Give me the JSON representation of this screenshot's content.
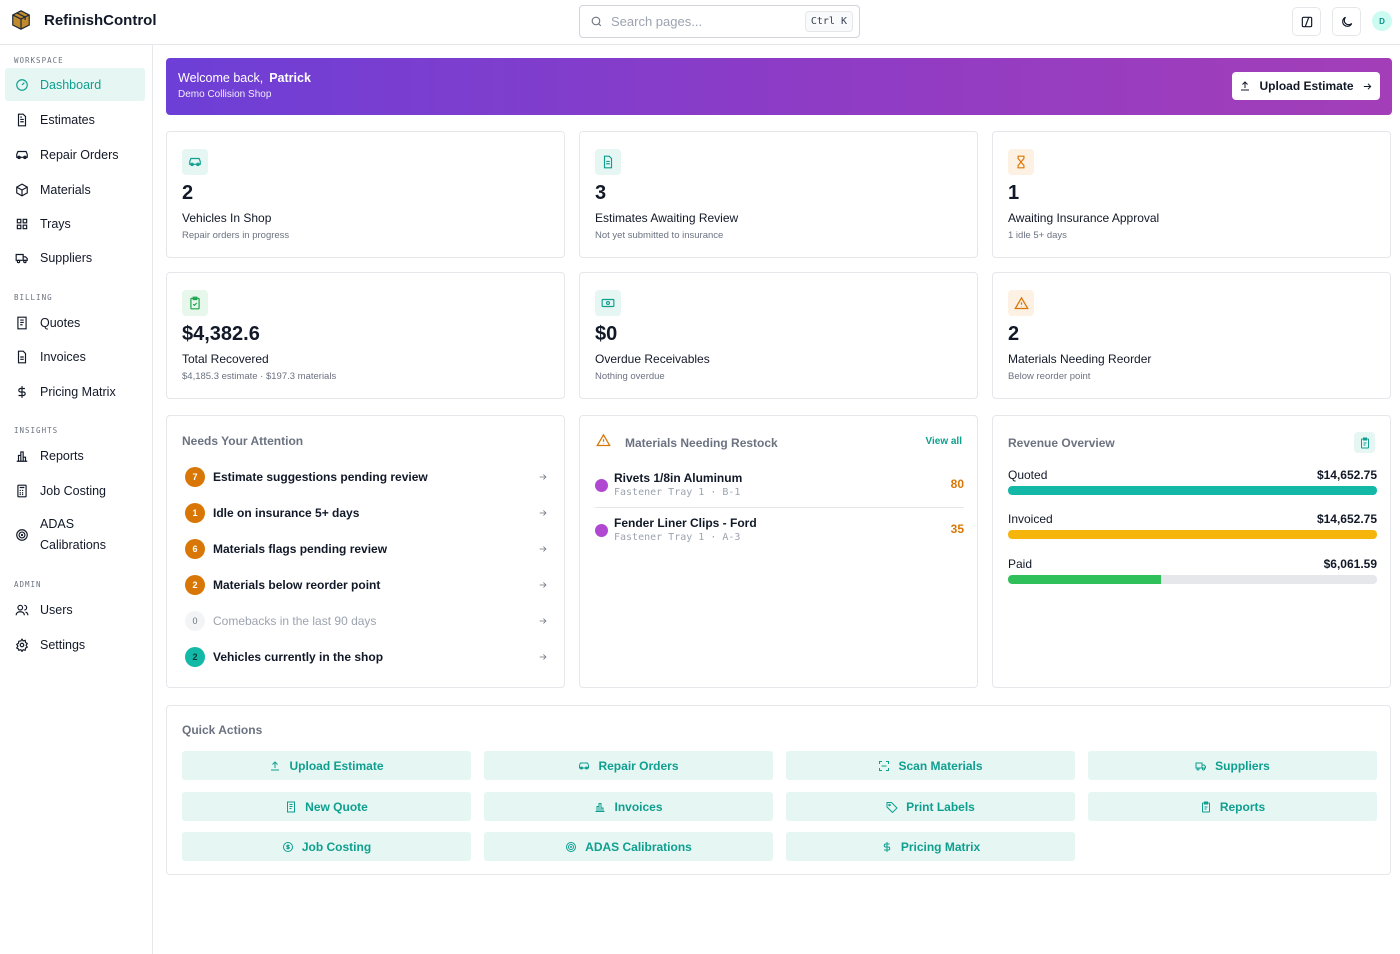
{
  "app": {
    "name": "RefinishControl"
  },
  "search": {
    "placeholder": "Search pages...",
    "shortcut": "Ctrl K"
  },
  "user": {
    "initial": "D"
  },
  "sidebar": {
    "sections": [
      {
        "label": "WORKSPACE",
        "items": [
          {
            "label": "Dashboard",
            "icon": "gauge-icon",
            "active": true
          },
          {
            "label": "Estimates",
            "icon": "file-text-icon"
          },
          {
            "label": "Repair Orders",
            "icon": "car-icon"
          },
          {
            "label": "Materials",
            "icon": "package-icon"
          },
          {
            "label": "Trays",
            "icon": "grid-icon"
          },
          {
            "label": "Suppliers",
            "icon": "truck-icon"
          }
        ]
      },
      {
        "label": "BILLING",
        "items": [
          {
            "label": "Quotes",
            "icon": "receipt-icon"
          },
          {
            "label": "Invoices",
            "icon": "file-icon"
          },
          {
            "label": "Pricing Matrix",
            "icon": "dollar-icon"
          }
        ]
      },
      {
        "label": "INSIGHTS",
        "items": [
          {
            "label": "Reports",
            "icon": "bar-chart-icon"
          },
          {
            "label": "Job Costing",
            "icon": "calculator-icon"
          },
          {
            "label": "ADAS Calibrations",
            "icon": "radar-icon"
          }
        ]
      },
      {
        "label": "ADMIN",
        "items": [
          {
            "label": "Users",
            "icon": "users-icon"
          },
          {
            "label": "Settings",
            "icon": "gear-icon"
          }
        ]
      }
    ]
  },
  "banner": {
    "welcome": "Welcome back,",
    "name": "Patrick",
    "shop": "Demo Collision Shop",
    "upload_label": "Upload Estimate"
  },
  "stats": [
    {
      "value": "2",
      "title": "Vehicles In Shop",
      "sub": "Repair orders in progress",
      "icon": "car-icon",
      "color": "#0f9f8f",
      "bg": "#e6f6f3"
    },
    {
      "value": "3",
      "title": "Estimates Awaiting Review",
      "sub": "Not yet submitted to insurance",
      "icon": "file-text-icon",
      "color": "#0f9f8f",
      "bg": "#e6f6f3"
    },
    {
      "value": "1",
      "title": "Awaiting Insurance Approval",
      "sub": "1 idle 5+ days",
      "icon": "hourglass-icon",
      "color": "#d97706",
      "bg": "#fdf1e3"
    },
    {
      "value": "$4,382.6",
      "title": "Total Recovered",
      "sub": "$4,185.3 estimate · $197.3 materials",
      "icon": "clipboard-check-icon",
      "color": "#16a34a",
      "bg": "#e8f7ec"
    },
    {
      "value": "$0",
      "title": "Overdue Receivables",
      "sub": "Nothing overdue",
      "icon": "banknote-icon",
      "color": "#0f9f8f",
      "bg": "#e6f6f3"
    },
    {
      "value": "2",
      "title": "Materials Needing Reorder",
      "sub": "Below reorder point",
      "icon": "warning-icon",
      "color": "#d97706",
      "bg": "#fdf1e3"
    }
  ],
  "attention": {
    "title": "Needs Your Attention",
    "items": [
      {
        "count": "7",
        "label": "Estimate suggestions pending review",
        "color": "#d97706",
        "muted": false
      },
      {
        "count": "1",
        "label": "Idle on insurance 5+ days",
        "color": "#d97706",
        "muted": false
      },
      {
        "count": "6",
        "label": "Materials flags pending review",
        "color": "#d97706",
        "muted": false
      },
      {
        "count": "2",
        "label": "Materials below reorder point",
        "color": "#d97706",
        "muted": false
      },
      {
        "count": "0",
        "label": "Comebacks in the last 90 days",
        "color": "#f3f4f6",
        "muted": true
      },
      {
        "count": "2",
        "label": "Vehicles currently in the shop",
        "color": "#14b8a6",
        "muted": false
      }
    ]
  },
  "restock": {
    "title": "Materials Needing Restock",
    "view_all": "View all",
    "items": [
      {
        "name": "Rivets 1/8in Aluminum",
        "location": "Fastener Tray 1 · B-1",
        "qty": "80"
      },
      {
        "name": "Fender Liner Clips - Ford",
        "location": "Fastener Tray 1 · A-3",
        "qty": "35"
      }
    ]
  },
  "revenue": {
    "title": "Revenue Overview",
    "rows": [
      {
        "label": "Quoted",
        "value": "$14,652.75",
        "fraction": 1.0,
        "color": "#14b8a6"
      },
      {
        "label": "Invoiced",
        "value": "$14,652.75",
        "fraction": 1.0,
        "color": "#f5b50b"
      },
      {
        "label": "Paid",
        "value": "$6,061.59",
        "fraction": 0.4137,
        "color": "#2fbf5b"
      }
    ]
  },
  "quick_actions": {
    "title": "Quick Actions",
    "items": [
      {
        "label": "Upload Estimate",
        "icon": "upload-icon"
      },
      {
        "label": "Repair Orders",
        "icon": "car-icon"
      },
      {
        "label": "Scan Materials",
        "icon": "scan-icon"
      },
      {
        "label": "Suppliers",
        "icon": "truck-icon"
      },
      {
        "label": "New Quote",
        "icon": "receipt-icon"
      },
      {
        "label": "Invoices",
        "icon": "bar-chart-icon"
      },
      {
        "label": "Print Labels",
        "icon": "tag-icon"
      },
      {
        "label": "Reports",
        "icon": "clipboard-icon"
      },
      {
        "label": "Job Costing",
        "icon": "dollar-circle-icon"
      },
      {
        "label": "ADAS Calibrations",
        "icon": "radar-icon"
      },
      {
        "label": "Pricing Matrix",
        "icon": "dollar-icon"
      }
    ]
  }
}
